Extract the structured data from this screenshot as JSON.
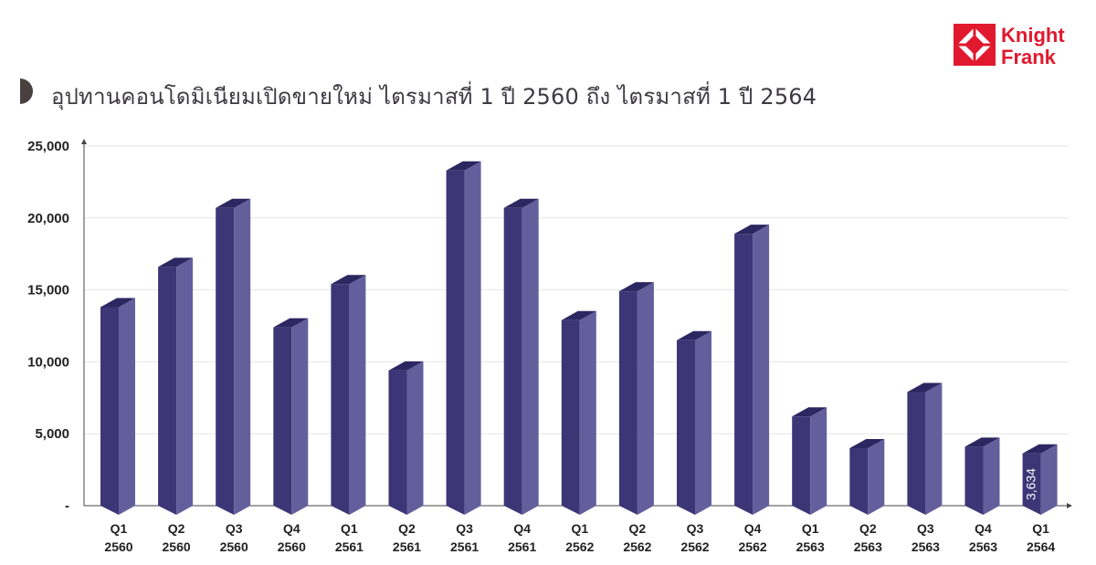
{
  "header": {
    "title": "อุปทานคอนโดมิเนียมเปิดขายใหม่ ไตรมาสที่ 1 ปี 2560 ถึง ไตรมาสที่ 1 ปี 2564",
    "logo_text": [
      "Knight",
      "Frank"
    ],
    "logo_icon": "knight-frank-logo-icon",
    "marker_icon": "half-circle-icon"
  },
  "colors": {
    "bar_front": "#3c3677",
    "bar_side": "#635f9c",
    "bar_top": "#2c2761",
    "brand": "#e0192e",
    "marker": "#4a4040",
    "grid": "#e6e6e6",
    "axis": "#444444"
  },
  "chart_data": {
    "type": "bar",
    "title": "อุปทานคอนโดมิเนียมเปิดขายใหม่ ไตรมาสที่ 1 ปี 2560 ถึง ไตรมาสที่ 1 ปี 2564",
    "categories": [
      [
        "Q1",
        "2560"
      ],
      [
        "Q2",
        "2560"
      ],
      [
        "Q3",
        "2560"
      ],
      [
        "Q4",
        "2560"
      ],
      [
        "Q1",
        "2561"
      ],
      [
        "Q2",
        "2561"
      ],
      [
        "Q3",
        "2561"
      ],
      [
        "Q4",
        "2561"
      ],
      [
        "Q1",
        "2562"
      ],
      [
        "Q2",
        "2562"
      ],
      [
        "Q3",
        "2562"
      ],
      [
        "Q4",
        "2562"
      ],
      [
        "Q1",
        "2563"
      ],
      [
        "Q2",
        "2563"
      ],
      [
        "Q3",
        "2563"
      ],
      [
        "Q4",
        "2563"
      ],
      [
        "Q1",
        "2564"
      ]
    ],
    "values": [
      13800,
      16600,
      20700,
      12400,
      15400,
      9400,
      23300,
      20700,
      12900,
      14900,
      11500,
      18900,
      6200,
      4000,
      7900,
      4100,
      3634
    ],
    "ylim": [
      0,
      25000
    ],
    "yticks": [
      0,
      5000,
      10000,
      15000,
      20000,
      25000
    ],
    "ytick_labels": [
      "-",
      "5,000",
      "10,000",
      "15,000",
      "20,000",
      "25,000"
    ],
    "data_labels": [
      {
        "index": 16,
        "text": "3,634"
      }
    ],
    "grid": true,
    "xlabel": "",
    "ylabel": ""
  }
}
